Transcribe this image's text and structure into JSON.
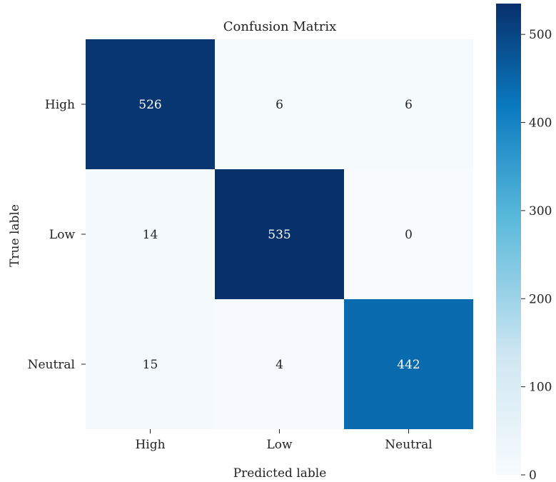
{
  "chart_data": {
    "type": "heatmap",
    "title": "Confusion Matrix",
    "xlabel": "Predicted lable",
    "ylabel": "True lable",
    "x_categories": [
      "High",
      "Low",
      "Neutral"
    ],
    "y_categories": [
      "High",
      "Low",
      "Neutral"
    ],
    "values": [
      [
        526,
        6,
        6
      ],
      [
        14,
        535,
        0
      ],
      [
        15,
        4,
        442
      ]
    ],
    "colorbar": {
      "min": 0,
      "max": 535,
      "ticks": [
        0,
        100,
        200,
        300,
        400,
        500
      ]
    },
    "colormap": [
      "#f7fbfe",
      "#cfe7f2",
      "#57b8d9",
      "#0a7ac0",
      "#08306b"
    ]
  }
}
